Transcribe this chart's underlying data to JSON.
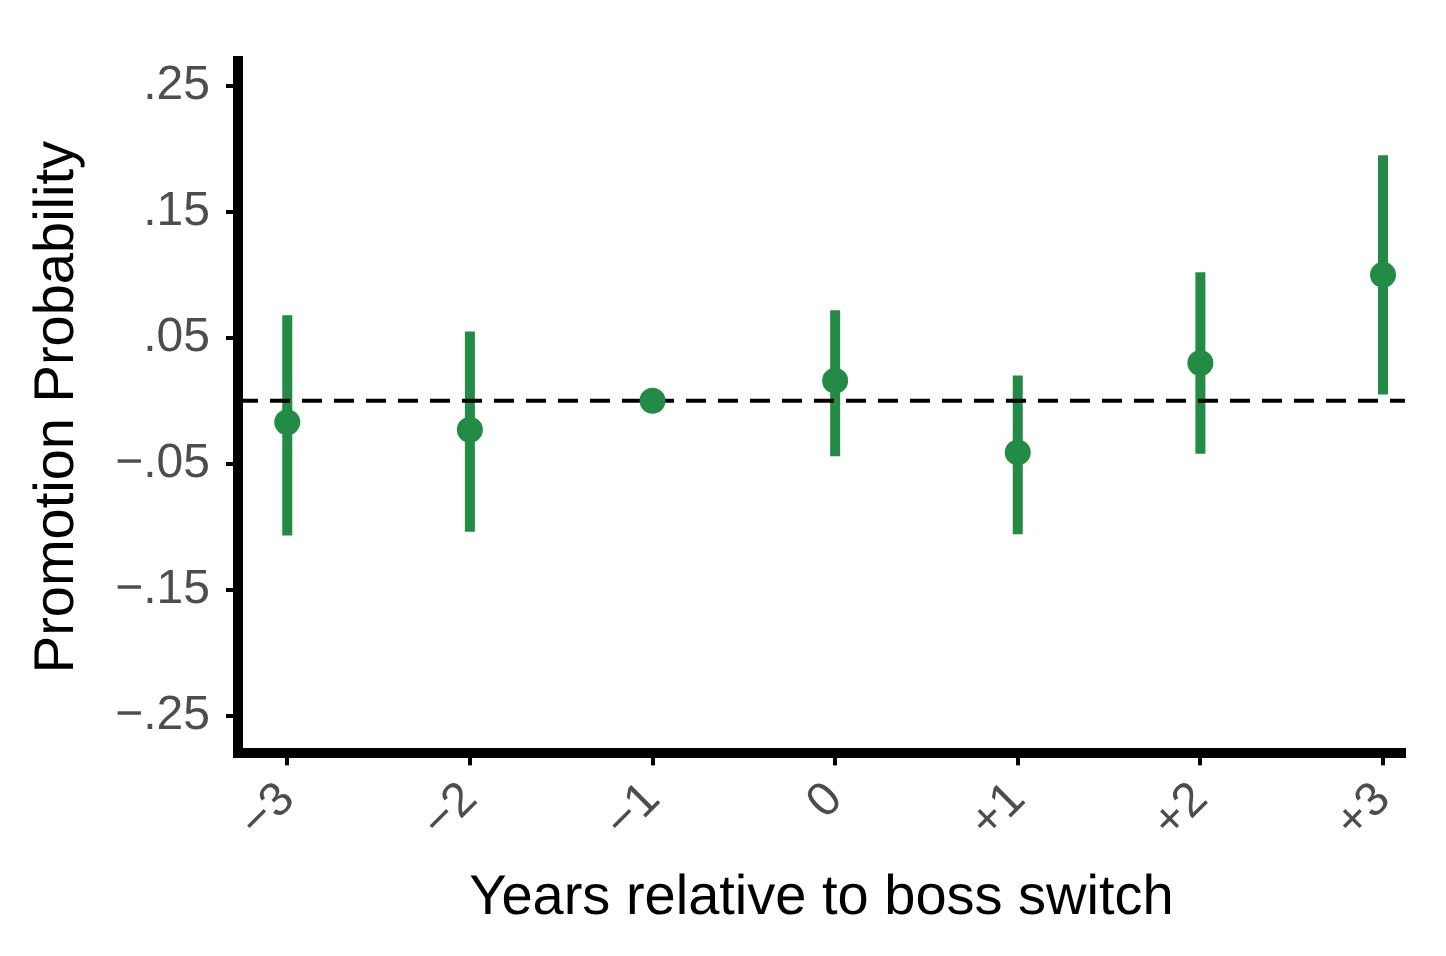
{
  "chart_data": {
    "type": "scatter",
    "xlabel": "Years relative to boss switch",
    "ylabel": "Promotion Probability",
    "categories": [
      "−3",
      "−2",
      "−1",
      "0",
      "+1",
      "+2",
      "+3"
    ],
    "series": [
      {
        "color": "#238b45",
        "values": [
          -0.017,
          -0.023,
          0,
          0.016,
          -0.041,
          0.03,
          0.1
        ],
        "errors": [
          [
            -0.107,
            0.068
          ],
          [
            -0.104,
            0.055
          ],
          null,
          [
            -0.044,
            0.072
          ],
          [
            -0.106,
            0.02
          ],
          [
            -0.042,
            0.102
          ],
          [
            0.005,
            0.195
          ]
        ]
      }
    ],
    "ylim": [
      -0.28,
      0.27
    ],
    "yticks": [
      {
        "value": -0.25,
        "label": "−.25"
      },
      {
        "value": -0.15,
        "label": "−.15"
      },
      {
        "value": -0.05,
        "label": "−.05"
      },
      {
        "value": 0.05,
        "label": ".05"
      },
      {
        "value": 0.15,
        "label": ".15"
      },
      {
        "value": 0.25,
        "label": ".25"
      }
    ],
    "ref_lines": [
      {
        "axis": "y",
        "value": 0,
        "color": "#000000",
        "line_style": "dashed"
      }
    ],
    "grid": false,
    "legend": false,
    "marker": "circle"
  }
}
